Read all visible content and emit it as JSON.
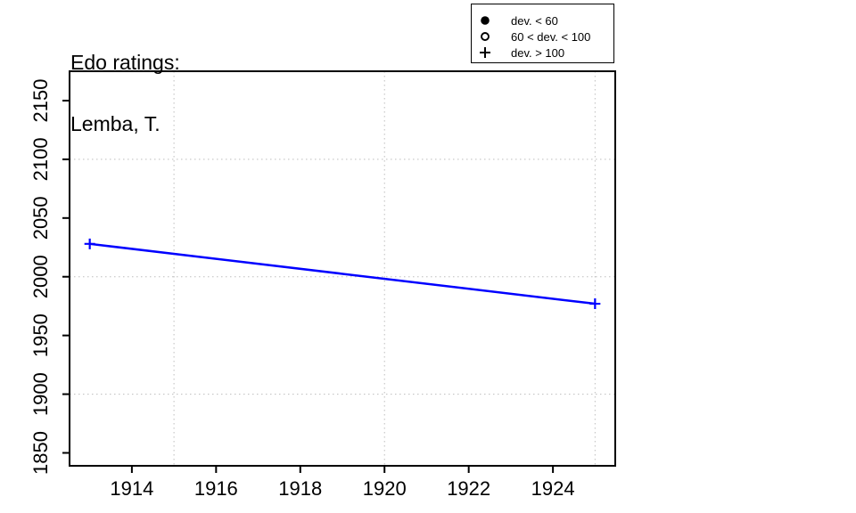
{
  "header": {
    "title_line1": "Edo ratings:",
    "title_line2": "Lemba, T."
  },
  "legend": {
    "items": [
      {
        "symbol": "filled-circle",
        "label": "dev. < 60"
      },
      {
        "symbol": "open-circle",
        "label": "60 < dev. < 100"
      },
      {
        "symbol": "plus",
        "label": "dev. > 100"
      }
    ]
  },
  "chart_data": {
    "type": "line",
    "title": "Edo ratings: Lemba, T.",
    "xlabel": "",
    "ylabel": "",
    "series": [
      {
        "name": "Lemba, T.",
        "points": [
          {
            "year": 1913,
            "rating": 2028,
            "symbol": "plus"
          },
          {
            "year": 1925,
            "rating": 1977,
            "symbol": "plus"
          }
        ]
      }
    ],
    "xlim": [
      1912.52,
      1925.48
    ],
    "ylim": [
      1839,
      2175
    ],
    "xticks": [
      1914,
      1916,
      1918,
      1920,
      1922,
      1924
    ],
    "yticks": [
      1850,
      1900,
      1950,
      2000,
      2050,
      2100,
      2150
    ],
    "grid_x": [
      1915,
      1920,
      1925
    ],
    "grid_y": [
      1900,
      2000,
      2100
    ],
    "grid_on": true,
    "grid_style": "dotted",
    "legend_position": "top-right",
    "line_color": "#0000ff",
    "grid_color": "#bdbdbd",
    "axis_color": "#000000"
  }
}
